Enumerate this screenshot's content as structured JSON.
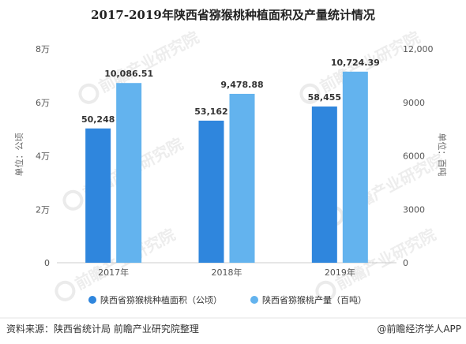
{
  "chart_data": {
    "type": "bar",
    "title": "2017-2019年陕西省猕猴桃种植面积及产量统计情况",
    "categories": [
      "2017年",
      "2018年",
      "2019年"
    ],
    "series": [
      {
        "name": "陕西省猕猴桃种植面积（公顷）",
        "axis": "left",
        "color": "#2f86dd",
        "values": [
          50248,
          53162,
          58455
        ],
        "labels": [
          "50,248",
          "53,162",
          "58,455"
        ]
      },
      {
        "name": "陕西省猕猴桃产量（百吨）",
        "axis": "right",
        "color": "#63b3ee",
        "values": [
          10086.51,
          9478.88,
          10724.39
        ],
        "labels": [
          "10,086.51",
          "9,478.88",
          "10,724.39"
        ]
      }
    ],
    "y_left": {
      "label": "单位：公顷",
      "ylim": [
        0,
        80000
      ],
      "ticks": [
        0,
        20000,
        40000,
        60000,
        80000
      ],
      "tick_labels": [
        "0",
        "2万",
        "4万",
        "6万",
        "8万"
      ]
    },
    "y_right": {
      "label": "单位：百吨",
      "ylim": [
        0,
        12000
      ],
      "ticks": [
        0,
        3000,
        6000,
        9000,
        12000
      ],
      "tick_labels": [
        "0",
        "3000",
        "6000",
        "9000",
        "12,000"
      ]
    },
    "legend_position": "bottom",
    "grid": false
  },
  "footer": {
    "source": "资料来源：陕西省统计局 前瞻产业研究院整理",
    "brand": "@前瞻经济学人APP"
  },
  "watermark": {
    "text": "前瞻产业研究院"
  }
}
